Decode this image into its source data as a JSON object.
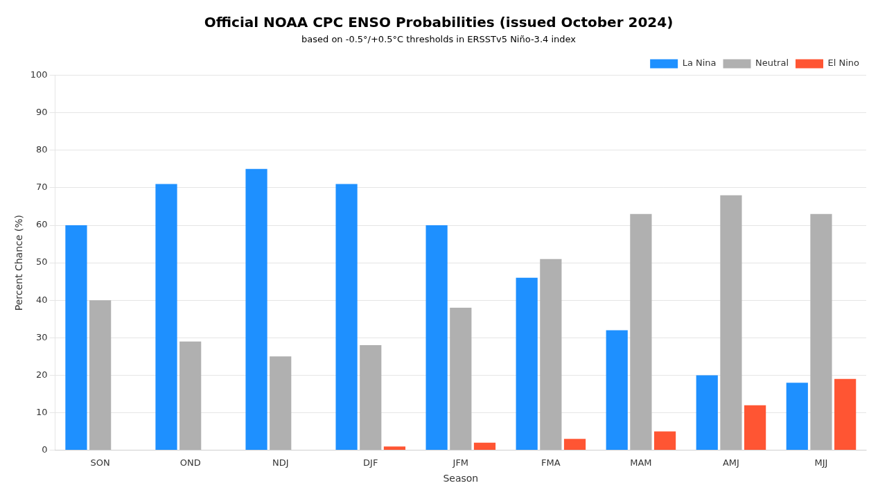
{
  "chart_data": {
    "type": "bar",
    "title": "Official NOAA CPC ENSO Probabilities (issued October 2024)",
    "subtitle": "based on -0.5°/+0.5°C thresholds in ERSSTv5 Niño-3.4 index",
    "categories": [
      "SON",
      "OND",
      "NDJ",
      "DJF",
      "JFM",
      "FMA",
      "MAM",
      "AMJ",
      "MJJ"
    ],
    "series": [
      {
        "name": "La Nina",
        "color": "#1E90FF",
        "values": [
          60,
          71,
          75,
          71,
          60,
          46,
          32,
          20,
          18
        ]
      },
      {
        "name": "Neutral",
        "color": "#B0B0B0",
        "values": [
          40,
          29,
          25,
          28,
          38,
          51,
          63,
          68,
          63
        ]
      },
      {
        "name": "El Nino",
        "color": "#FF5533",
        "values": [
          0,
          0,
          0,
          1,
          2,
          3,
          5,
          12,
          19
        ]
      }
    ],
    "xlabel": "Season",
    "ylabel": "Percent Chance (%)",
    "ylim": [
      0,
      100
    ],
    "yticks": [
      0,
      10,
      20,
      30,
      40,
      50,
      60,
      70,
      80,
      90,
      100
    ],
    "grid": true,
    "legend": "upper right"
  }
}
